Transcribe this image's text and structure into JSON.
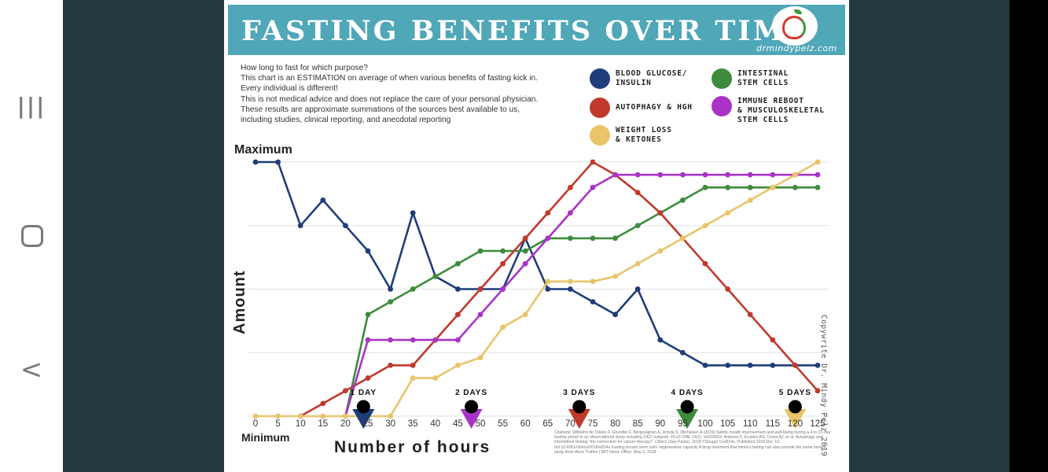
{
  "poster": {
    "title": "FASTING BENEFITS OVER TIME",
    "site": "drmindypelz.com",
    "intro_lines": [
      "How long to fast for which purpose?",
      "This chart is an ESTIMATION on average of when various benefits of fasting kick in.",
      "Every individual is different!",
      "This is not medical advice and does not replace the care of your personal physician.",
      "These results are approximate summations of the sources best available to us,",
      "including studies, clinical reporting, and anecdotal reporting"
    ],
    "copyright": "Copywrite Dr. Mindy Pelz 2019",
    "citations": "Citations: Wilhelmi de Toledo F, Grundler F, Bergouignan A, Drinda S, Michalsen A (2019) Safety, health improvement and well-being during a 4 to 21-day fasting period in an observational study including 1422 subjects. PLoS ONE 14(1): e0209353. Antunes F, Erustes AG, Costa AJ, et al. Autophagy and intermittent fasting: the connection for cancer therapy?. Clinics (Sao Paulo). 2018;73(suppl 1):e814s. Published 2018 Dec 10. doi:10.6061/clinics/2018/e814s Fasting boosts stem cells' regenerative capacity A drug treatment that mimics fasting can also provide the same benefit, study finds Anne Trafton | MIT News Office, May 3, 2018",
    "colors": {
      "banner": "#4fa7b8",
      "background_photo": "#233a40"
    }
  },
  "nav": {
    "recent_icon": "|||",
    "back_icon": "<"
  },
  "chart_data": {
    "type": "line",
    "xlabel": "Number of hours",
    "ylabel": "Amount",
    "y_top_label": "Maximum",
    "y_bottom_label": "Minimum",
    "x_ticks": [
      0,
      5,
      10,
      15,
      20,
      25,
      30,
      35,
      40,
      45,
      50,
      55,
      60,
      65,
      70,
      75,
      80,
      85,
      90,
      95,
      100,
      105,
      110,
      115,
      120,
      125
    ],
    "ylim": [
      0,
      100
    ],
    "grid": true,
    "legend_position": "top-right",
    "series": [
      {
        "name": "BLOOD GLUCOSE/\nINSULIN",
        "color": "#1f3d7a",
        "x": [
          0,
          5,
          10,
          15,
          20,
          25,
          30,
          35,
          40,
          45,
          50,
          55,
          60,
          65,
          70,
          75,
          80,
          85,
          90,
          95,
          100,
          105,
          110,
          115,
          120,
          125
        ],
        "y": [
          100,
          100,
          75,
          85,
          75,
          65,
          50,
          80,
          55,
          50,
          50,
          50,
          70,
          50,
          50,
          45,
          40,
          50,
          30,
          25,
          20,
          20,
          20,
          20,
          20,
          20
        ]
      },
      {
        "name": "INTESTINAL\nSTEM CELLS",
        "color": "#3d8c3d",
        "x": [
          20,
          25,
          30,
          35,
          40,
          45,
          50,
          55,
          60,
          65,
          70,
          75,
          80,
          85,
          90,
          95,
          100,
          105,
          110,
          115,
          120,
          125
        ],
        "y": [
          0,
          40,
          45,
          50,
          55,
          60,
          65,
          65,
          65,
          70,
          70,
          70,
          70,
          75,
          80,
          85,
          90,
          90,
          90,
          90,
          90,
          90
        ]
      },
      {
        "name": "AUTOPHAGY & HGH",
        "color": "#c0392b",
        "x": [
          10,
          15,
          20,
          25,
          30,
          35,
          40,
          45,
          50,
          55,
          60,
          65,
          70,
          75,
          80,
          85,
          90,
          95,
          100,
          105,
          110,
          115,
          120,
          125
        ],
        "y": [
          0,
          5,
          10,
          15,
          20,
          20,
          30,
          40,
          50,
          60,
          70,
          80,
          90,
          100,
          95,
          88,
          80,
          70,
          60,
          50,
          40,
          30,
          20,
          10
        ]
      },
      {
        "name": "IMMUNE REBOOT\n& MUSCULOSKELETAL\nSTEM CELLS",
        "color": "#a933c7",
        "x": [
          20,
          25,
          30,
          35,
          40,
          45,
          50,
          55,
          60,
          65,
          70,
          75,
          80,
          85,
          90,
          95,
          100,
          105,
          110,
          115,
          120,
          125
        ],
        "y": [
          0,
          30,
          30,
          30,
          30,
          30,
          40,
          50,
          60,
          70,
          80,
          90,
          95,
          95,
          95,
          95,
          95,
          95,
          95,
          95,
          95,
          95
        ]
      },
      {
        "name": "WEIGHT LOSS\n& KETONES",
        "color": "#e9c46a",
        "x": [
          0,
          5,
          10,
          15,
          20,
          25,
          30,
          35,
          40,
          45,
          50,
          55,
          60,
          65,
          70,
          75,
          80,
          85,
          90,
          95,
          100,
          105,
          110,
          115,
          120,
          125
        ],
        "y": [
          0,
          0,
          0,
          0,
          0,
          0,
          0,
          15,
          15,
          20,
          23,
          35,
          40,
          53,
          53,
          53,
          55,
          60,
          65,
          70,
          75,
          80,
          85,
          90,
          95,
          100
        ]
      }
    ],
    "markers": [
      {
        "label": "1 DAY",
        "x": 24,
        "color": "#1f3d7a"
      },
      {
        "label": "2 DAYS",
        "x": 48,
        "color": "#a933c7"
      },
      {
        "label": "3 DAYS",
        "x": 72,
        "color": "#c0392b"
      },
      {
        "label": "4 DAYS",
        "x": 96,
        "color": "#3d8c3d"
      },
      {
        "label": "5 DAYS",
        "x": 120,
        "color": "#e9c46a"
      }
    ]
  }
}
